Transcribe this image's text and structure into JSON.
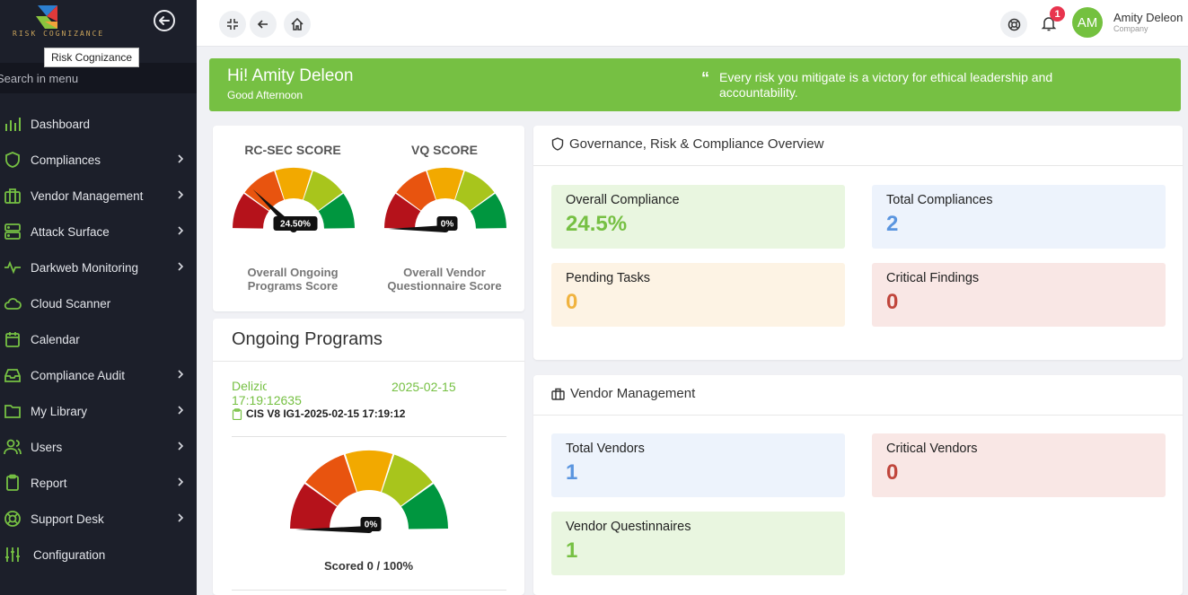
{
  "brand": {
    "logo_text": "RISK COGNIZANCE",
    "tooltip": "Risk Cognizance"
  },
  "sidebar": {
    "search_placeholder": "Search in menu",
    "items": [
      {
        "label": "Dashboard",
        "icon": "bar-chart-icon",
        "has_children": false
      },
      {
        "label": "Compliances",
        "icon": "shield-icon",
        "has_children": true
      },
      {
        "label": "Vendor Management",
        "icon": "briefcase-icon",
        "has_children": true
      },
      {
        "label": "Attack Surface",
        "icon": "server-icon",
        "has_children": true
      },
      {
        "label": "Darkweb Monitoring",
        "icon": "activity-icon",
        "has_children": true
      },
      {
        "label": "Cloud Scanner",
        "icon": "cloud-icon",
        "has_children": false
      },
      {
        "label": "Calendar",
        "icon": "calendar-icon",
        "has_children": false
      },
      {
        "label": "Compliance Audit",
        "icon": "inbox-icon",
        "has_children": true
      },
      {
        "label": "My Library",
        "icon": "folder-icon",
        "has_children": true
      },
      {
        "label": "Users",
        "icon": "users-icon",
        "has_children": true
      },
      {
        "label": "Report",
        "icon": "clipboard-icon",
        "has_children": true
      },
      {
        "label": "Support Desk",
        "icon": "lifebuoy-icon",
        "has_children": true
      },
      {
        "label": "Configuration",
        "icon": "sliders-icon",
        "has_children": false
      }
    ]
  },
  "topbar": {
    "notification_count": "1",
    "avatar_initials": "AM",
    "user_name": "Amity Deleon",
    "user_role": "Company"
  },
  "banner": {
    "greeting": "Hi! Amity Deleon",
    "subtitle": "Good Afternoon",
    "quote": "Every risk you mitigate is a victory for ethical leadership and accountability."
  },
  "scores": {
    "rc_sec": {
      "title": "RC-SEC SCORE",
      "value_label": "24.50%",
      "value": 24.5,
      "label": "Overall Ongoing Programs Score"
    },
    "vq": {
      "title": "VQ SCORE",
      "value_label": "0%",
      "value": 0,
      "label": "Overall Vendor Questionnaire Score"
    }
  },
  "ongoing": {
    "title": "Ongoing Programs",
    "company": "Delizio,",
    "date": "2025-02-15",
    "time": "17:19:12635",
    "program_name": "CIS V8 IG1-2025-02-15 17:19:12",
    "gauge_label": "0%",
    "gauge_value": 0,
    "scored": "Scored 0 / 100%"
  },
  "grc": {
    "title": "Governance, Risk & Compliance Overview",
    "stats": [
      {
        "label": "Overall Compliance",
        "value": "24.5%",
        "bg": "#e9f6e0",
        "color": "#76c043"
      },
      {
        "label": "Total Compliances",
        "value": "2",
        "bg": "#edf3fc",
        "color": "#5a95df"
      },
      {
        "label": "Pending Tasks",
        "value": "0",
        "bg": "#fdf3e4",
        "color": "#f0b33f"
      },
      {
        "label": "Critical Findings",
        "value": "0",
        "bg": "#f9e7e5",
        "color": "#c0463c"
      }
    ]
  },
  "vendor": {
    "title": "Vendor Management",
    "stats": [
      {
        "label": "Total Vendors",
        "value": "1",
        "bg": "#edf3fc",
        "color": "#5a95df"
      },
      {
        "label": "Critical Vendors",
        "value": "0",
        "bg": "#f9e7e5",
        "color": "#c0463c"
      },
      {
        "label": "Vendor Questinnaires",
        "value": "1",
        "bg": "#e9f6e0",
        "color": "#76c043"
      }
    ]
  },
  "colors": {
    "accent": "#76c043",
    "sidebar_bg": "#1c1f2a",
    "badge": "#e8344e"
  }
}
